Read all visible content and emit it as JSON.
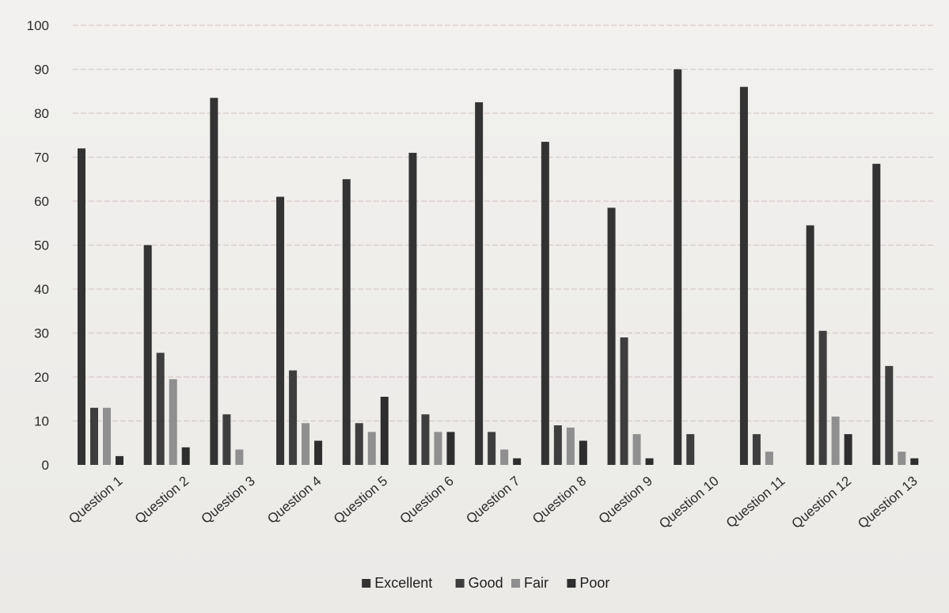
{
  "chart_data": {
    "type": "bar",
    "title": "",
    "xlabel": "",
    "ylabel": "",
    "ylim": [
      0,
      100
    ],
    "yticks": [
      0,
      10,
      20,
      30,
      40,
      50,
      60,
      70,
      80,
      90,
      100
    ],
    "grid": true,
    "legend_position": "bottom",
    "categories": [
      "Question 1",
      "Question 2",
      "Question 3",
      "Question 4",
      "Question 5",
      "Question 6",
      "Question 7",
      "Question 8",
      "Question 9",
      "Question 10",
      "Question 11",
      "Question 12",
      "Question 13"
    ],
    "series": [
      {
        "name": "Excellent",
        "color": "#333333",
        "values": [
          72,
          50,
          83.5,
          61,
          65,
          71,
          82.5,
          73.5,
          58.5,
          90,
          86,
          54.5,
          68.5
        ]
      },
      {
        "name": "Good",
        "color": "#3e3e3e",
        "values": [
          13,
          25.5,
          11.5,
          21.5,
          9.5,
          11.5,
          7.5,
          9,
          29,
          7,
          7,
          30.5,
          22.5
        ]
      },
      {
        "name": "Fair",
        "color": "#8f8f8f",
        "values": [
          13,
          19.5,
          3.5,
          9.5,
          7.5,
          7.5,
          3.5,
          8.5,
          7,
          0,
          3,
          11,
          3
        ]
      },
      {
        "name": "Poor",
        "color": "#2e2e2e",
        "values": [
          2,
          4,
          0,
          5.5,
          15.5,
          7.5,
          1.5,
          5.5,
          1.5,
          0,
          0,
          7,
          1.5
        ]
      }
    ]
  }
}
